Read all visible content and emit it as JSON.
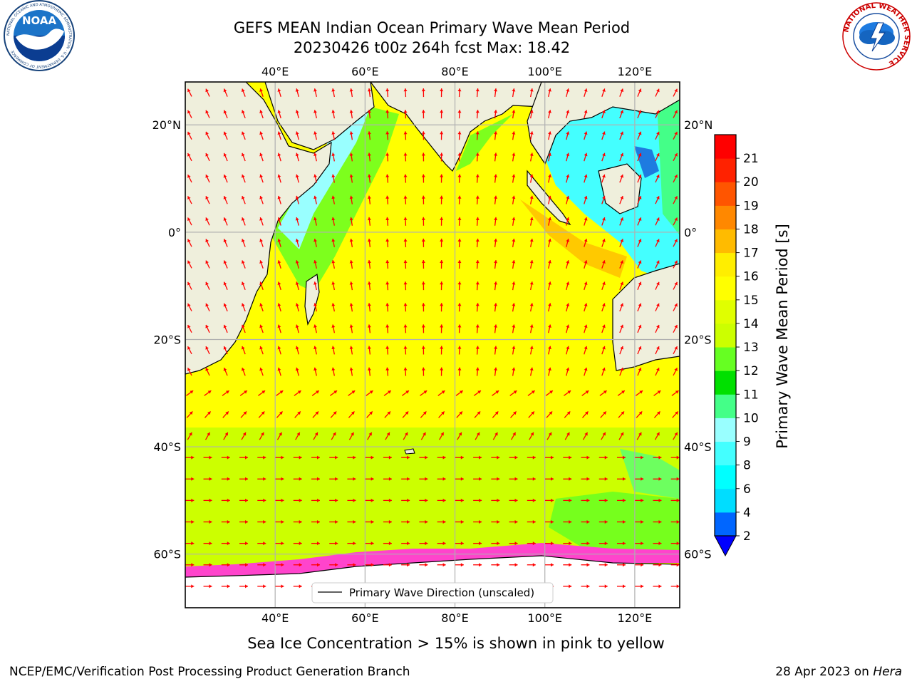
{
  "title": {
    "line1": "GEFS MEAN Indian Ocean Primary Wave Mean Period",
    "line2": "20230426 t00z 264h fcst   Max: 18.42"
  },
  "map": {
    "lon_range": [
      20,
      130
    ],
    "lat_range": [
      -70,
      28
    ],
    "lon_ticks": [
      {
        "value": 40,
        "label": "40°E"
      },
      {
        "value": 60,
        "label": "60°E"
      },
      {
        "value": 80,
        "label": "80°E"
      },
      {
        "value": 100,
        "label": "100°E"
      },
      {
        "value": 120,
        "label": "120°E"
      }
    ],
    "lat_ticks": [
      {
        "value": 20,
        "label": "20°N"
      },
      {
        "value": 0,
        "label": "0°"
      },
      {
        "value": -20,
        "label": "20°S"
      },
      {
        "value": -40,
        "label": "40°S"
      },
      {
        "value": -60,
        "label": "60°S"
      }
    ],
    "ocean_color": "#ffff00",
    "land_color": "#efefdc",
    "arrow_color": "#ff0000",
    "legend_label": "Primary Wave Direction (unscaled)"
  },
  "colorbar": {
    "label": "Primary Wave Mean Period [s]",
    "tick_labels": [
      "2",
      "4",
      "6",
      "8",
      "9",
      "10",
      "11",
      "12",
      "13",
      "14",
      "15",
      "16",
      "17",
      "18",
      "19",
      "20",
      "21"
    ],
    "colors": [
      "#0066ff",
      "#00ddff",
      "#00ffff",
      "#44ffff",
      "#99ffff",
      "#44ff88",
      "#00e000",
      "#66ff22",
      "#ccff00",
      "#e0ff00",
      "#ffff00",
      "#ffee00",
      "#ffbb00",
      "#ff8800",
      "#ff5500",
      "#ff2200",
      "#ff0000"
    ],
    "extend_color": "#0000ff"
  },
  "logos": {
    "noaa_text": "NOAA",
    "noaa_ring_text": "NATIONAL OCEANIC AND ATMOSPHERIC ADMINISTRATION · U.S. DEPARTMENT OF COMMERCE",
    "nws_ring_text": "NATIONAL WEATHER SERVICE"
  },
  "subcaption": "Sea Ice Concentration > 15% is shown in pink to yellow",
  "footer": {
    "left": "NCEP/EMC/Verification Post Processing Product Generation Branch",
    "right_prefix": "28 Apr 2023 on ",
    "right_host": "Hera"
  }
}
